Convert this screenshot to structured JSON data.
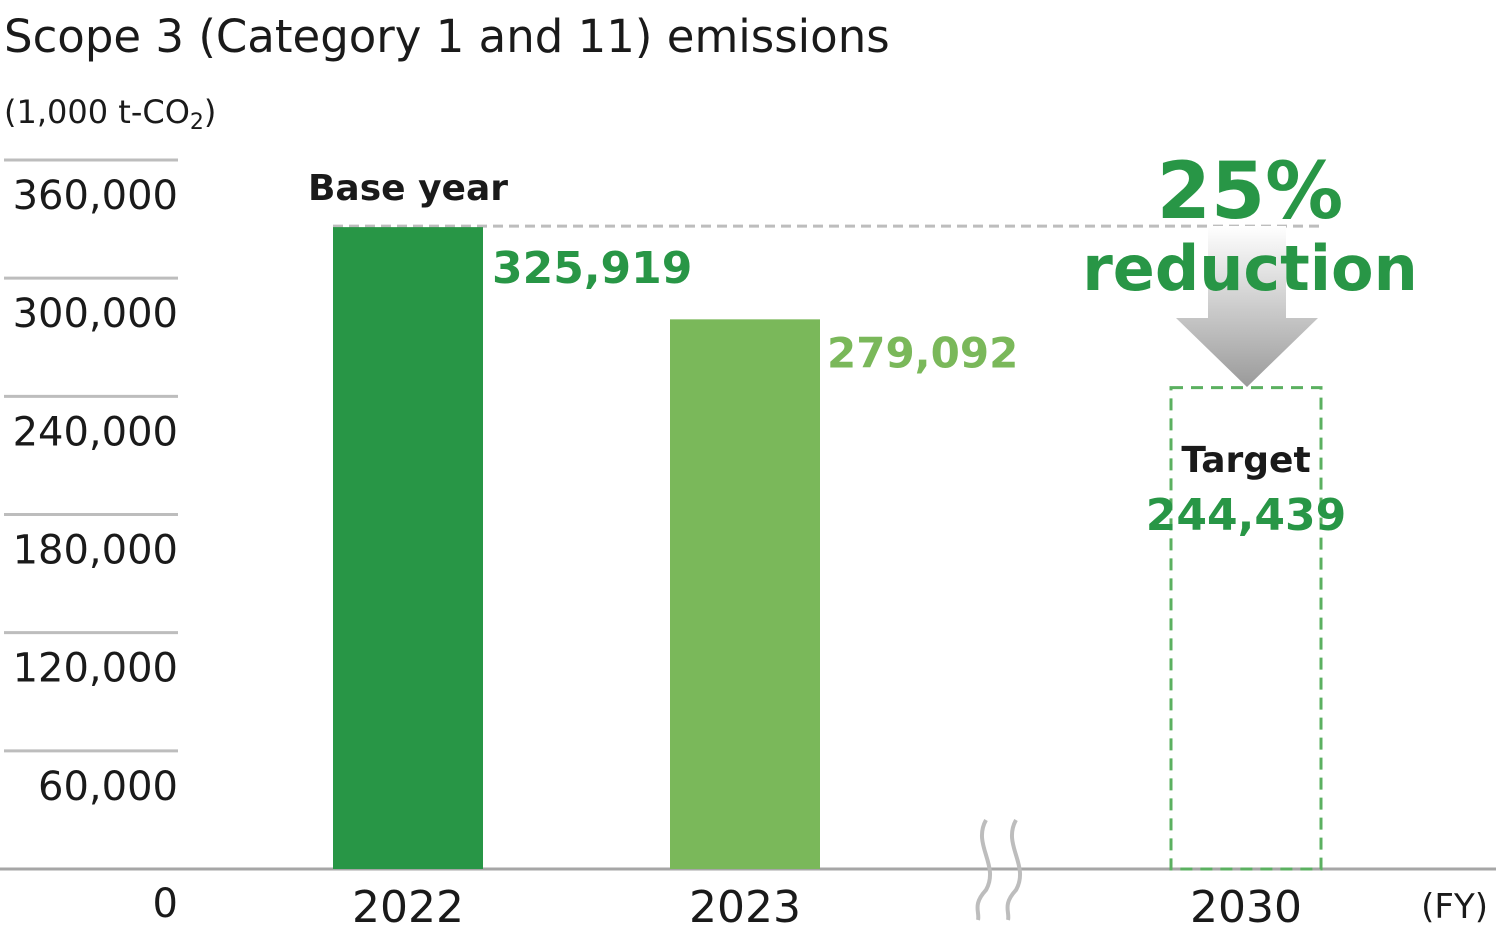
{
  "chart_data": {
    "type": "bar",
    "title": "Scope 3 (Category 1 and 11) emissions",
    "unit_label": "(1,000 t-CO",
    "unit_subscript": "2",
    "unit_close": ")",
    "x_unit": "(FY)",
    "ylim": [
      0,
      360000
    ],
    "y_ticks": [
      {
        "value": 0,
        "label": "0"
      },
      {
        "value": 60000,
        "label": "60,000"
      },
      {
        "value": 120000,
        "label": "120,000"
      },
      {
        "value": 180000,
        "label": "180,000"
      },
      {
        "value": 240000,
        "label": "240,000"
      },
      {
        "value": 300000,
        "label": "300,000"
      },
      {
        "value": 360000,
        "label": "360,000"
      }
    ],
    "grid": true,
    "categories": [
      "2022",
      "2023",
      "2030"
    ],
    "values": [
      325919,
      279092,
      244439
    ],
    "value_labels": [
      "325,919",
      "279,092",
      "244,439"
    ],
    "bar_colors": [
      "#289646",
      "#7ab85a",
      "#5bb060"
    ],
    "bar_styles": [
      "solid",
      "solid",
      "dashed"
    ],
    "annotations": {
      "base_year": "Base year",
      "target": "Target",
      "reduction_pct": "25%",
      "reduction_word": "reduction"
    },
    "axis_break_between": [
      "2023",
      "2030"
    ]
  }
}
